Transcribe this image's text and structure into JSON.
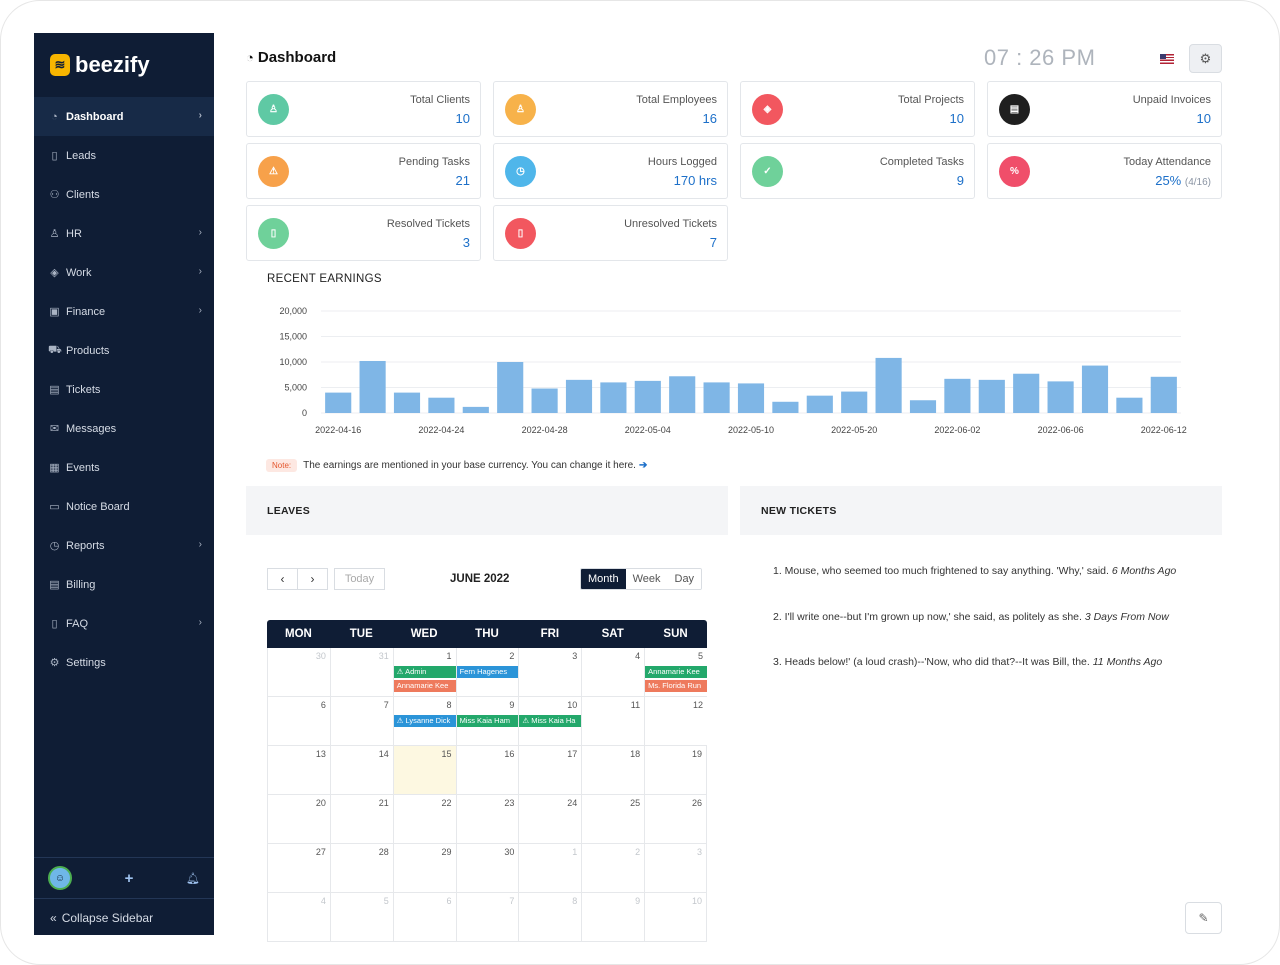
{
  "app": {
    "name": "beezify"
  },
  "sidebar": {
    "items": [
      {
        "label": "Dashboard",
        "icon": "dashboard-icon",
        "glyph": "◔",
        "chevron": true,
        "active": true
      },
      {
        "label": "Leads",
        "icon": "file-icon",
        "glyph": "▯",
        "chevron": false
      },
      {
        "label": "Clients",
        "icon": "users-icon",
        "glyph": "⚇",
        "chevron": false
      },
      {
        "label": "HR",
        "icon": "user-icon",
        "glyph": "♙",
        "chevron": true
      },
      {
        "label": "Work",
        "icon": "layers-icon",
        "glyph": "◈",
        "chevron": true
      },
      {
        "label": "Finance",
        "icon": "money-icon",
        "glyph": "▣",
        "chevron": true
      },
      {
        "label": "Products",
        "icon": "cart-icon",
        "glyph": "⛟",
        "chevron": false
      },
      {
        "label": "Tickets",
        "icon": "ticket-icon",
        "glyph": "▤",
        "chevron": false
      },
      {
        "label": "Messages",
        "icon": "mail-icon",
        "glyph": "✉",
        "chevron": false
      },
      {
        "label": "Events",
        "icon": "calendar-icon",
        "glyph": "▦",
        "chevron": false
      },
      {
        "label": "Notice Board",
        "icon": "board-icon",
        "glyph": "▭",
        "chevron": false
      },
      {
        "label": "Reports",
        "icon": "chart-icon",
        "glyph": "◷",
        "chevron": true
      },
      {
        "label": "Billing",
        "icon": "billing-icon",
        "glyph": "▤",
        "chevron": false
      },
      {
        "label": "FAQ",
        "icon": "faq-icon",
        "glyph": "▯",
        "chevron": true
      },
      {
        "label": "Settings",
        "icon": "settings-icon",
        "glyph": "⚙",
        "chevron": false
      }
    ],
    "collapse_label": "Collapse Sidebar"
  },
  "header": {
    "title": "Dashboard",
    "clock": "07 : 26 PM"
  },
  "stats": [
    {
      "label": "Total Clients",
      "value": "10",
      "color": "#5fc9a4",
      "icon": "client-icon",
      "glyph": "♙"
    },
    {
      "label": "Total Employees",
      "value": "16",
      "color": "#f7b24a",
      "icon": "employee-icon",
      "glyph": "♙"
    },
    {
      "label": "Total Projects",
      "value": "10",
      "color": "#f2575f",
      "icon": "project-icon",
      "glyph": "◈"
    },
    {
      "label": "Unpaid Invoices",
      "value": "10",
      "color": "#1f1f1f",
      "icon": "invoice-icon",
      "glyph": "▤"
    },
    {
      "label": "Pending Tasks",
      "value": "21",
      "color": "#f7a14a",
      "icon": "warning-icon",
      "glyph": "⚠"
    },
    {
      "label": "Hours Logged",
      "value": "170 hrs",
      "color": "#4fb6ea",
      "icon": "clock-icon",
      "glyph": "◷"
    },
    {
      "label": "Completed Tasks",
      "value": "9",
      "color": "#6fd19a",
      "icon": "check-icon",
      "glyph": "✓"
    },
    {
      "label": "Today Attendance",
      "value": "25%",
      "extra": "(4/16)",
      "color": "#f04e6a",
      "icon": "percent-icon",
      "glyph": "%"
    },
    {
      "label": "Resolved Tickets",
      "value": "3",
      "color": "#6fd19a",
      "icon": "ticket-resolved-icon",
      "glyph": "▯"
    },
    {
      "label": "Unresolved Tickets",
      "value": "7",
      "color": "#f2575f",
      "icon": "ticket-unresolved-icon",
      "glyph": "▯"
    }
  ],
  "earnings": {
    "title": "RECENT EARNINGS",
    "note_tag": "Note:",
    "note": "The earnings are mentioned in your base currency. You can change it here."
  },
  "chart_data": {
    "type": "bar",
    "title": "RECENT EARNINGS",
    "ylim": [
      0,
      20000
    ],
    "yticks": [
      "20,000",
      "15,000",
      "10,000",
      "5,000",
      "0"
    ],
    "xticks": [
      "2022-04-16",
      "2022-04-24",
      "2022-04-28",
      "2022-05-04",
      "2022-05-10",
      "2022-05-20",
      "2022-06-02",
      "2022-06-06",
      "2022-06-12"
    ],
    "values": [
      4000,
      10200,
      4000,
      3000,
      1200,
      10000,
      4800,
      6500,
      6000,
      6300,
      7200,
      6000,
      5800,
      2200,
      3400,
      4200,
      10800,
      2500,
      6700,
      6500,
      7700,
      6200,
      9300,
      3000,
      7100
    ],
    "color": "#7fb6e6",
    "grid": true
  },
  "leaves": {
    "title": "LEAVES",
    "nav_today": "Today",
    "month_title": "JUNE 2022",
    "views": [
      "Month",
      "Week",
      "Day"
    ],
    "active_view": "Month",
    "weekdays": [
      "MON",
      "TUE",
      "WED",
      "THU",
      "FRI",
      "SAT",
      "SUN"
    ],
    "weeks": [
      [
        "30",
        "31",
        "1",
        "2",
        "3",
        "4",
        "5"
      ],
      [
        "6",
        "7",
        "8",
        "9",
        "10",
        "11",
        "12"
      ],
      [
        "13",
        "14",
        "15",
        "16",
        "17",
        "18",
        "19"
      ],
      [
        "20",
        "21",
        "22",
        "23",
        "24",
        "25",
        "26"
      ],
      [
        "27",
        "28",
        "29",
        "30",
        "1",
        "2",
        "3"
      ],
      [
        "4",
        "5",
        "6",
        "7",
        "8",
        "9",
        "10"
      ]
    ],
    "events": {
      "e1": "⚠ Admin",
      "e2": "Fern Hagenes",
      "e3": "Annamarie Kee",
      "e4": "Annamarie Kee",
      "e5": "Ms. Florida Run",
      "e6": "⚠ Lysanne Dick",
      "e7": "Miss Kaia Ham",
      "e8": "⚠ Miss Kaia Ha"
    }
  },
  "tickets": {
    "title": "NEW TICKETS",
    "items": [
      {
        "text": "1. Mouse, who seemed too much frightened to say anything. 'Why,' said.",
        "time": "6 Months Ago"
      },
      {
        "text": "2. I'll write one--but I'm grown up now,' she said, as politely as she.",
        "time": "3 Days From Now"
      },
      {
        "text": "3. Heads below!' (a loud crash)--'Now, who did that?--It was Bill, the.",
        "time": "11 Months Ago"
      }
    ]
  }
}
